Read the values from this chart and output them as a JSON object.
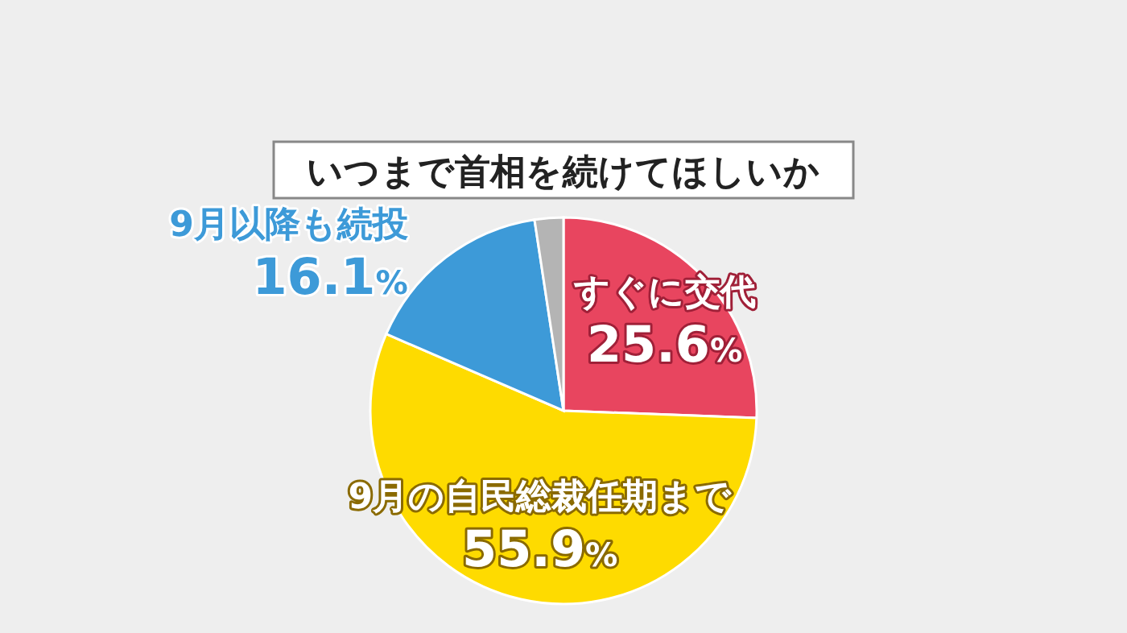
{
  "chart_data": {
    "type": "pie",
    "title": "いつまで首相を続けてほしいか",
    "categories": [
      "すぐに交代",
      "9月の自民総裁任期まで",
      "9月以降も続投",
      null
    ],
    "values": [
      25.6,
      55.9,
      16.1,
      2.4
    ],
    "colors": [
      "#e8455f",
      "#fedb00",
      "#3d9ad8",
      "#b4b4b4"
    ],
    "value_labels": [
      "25.6%",
      "55.9%",
      "16.1%",
      null
    ]
  }
}
